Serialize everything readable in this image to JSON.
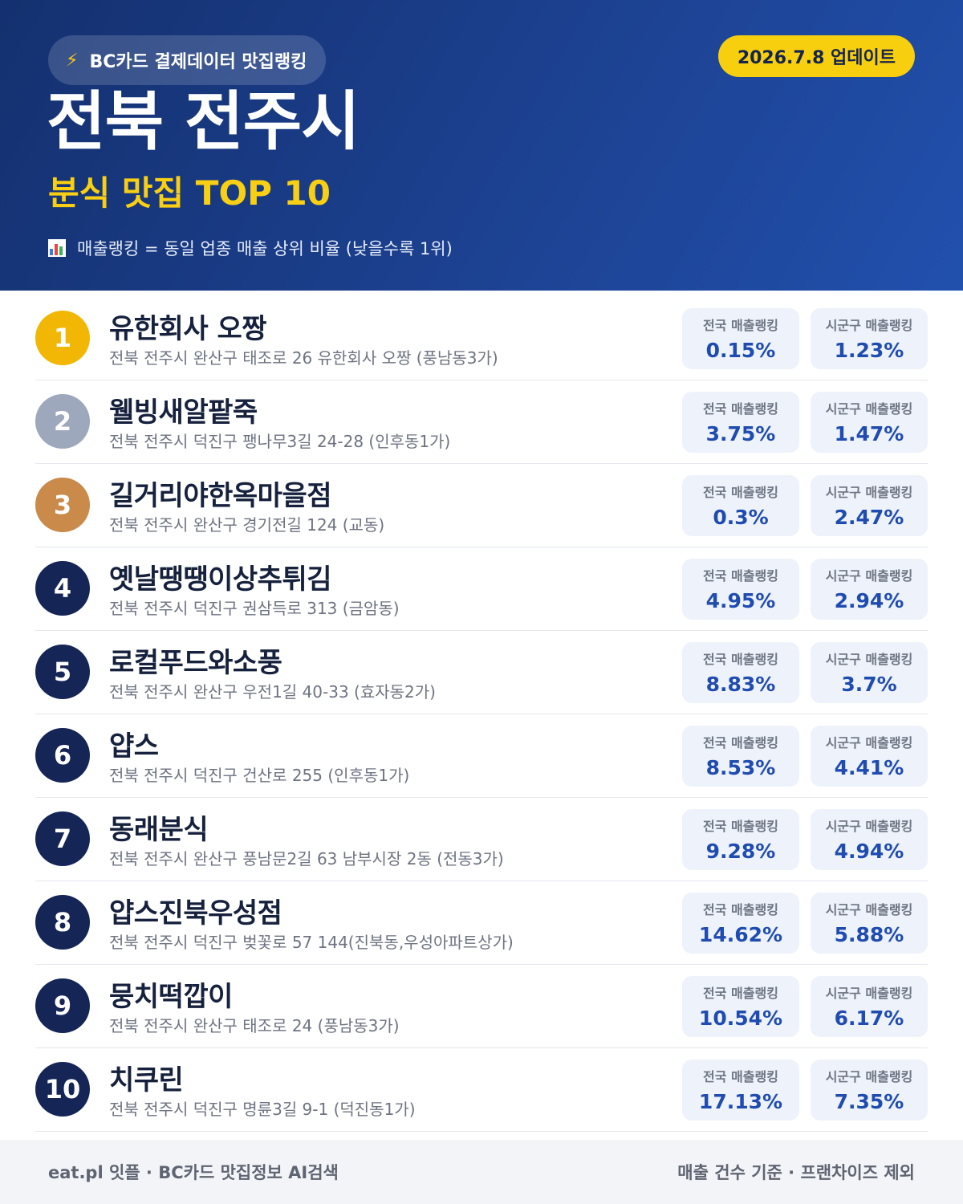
{
  "header": {
    "source_label": "BC카드 결제데이터 맛집랭킹",
    "source_icon": "lightning-bolt-icon",
    "update_label": "2026.7.8 업데이트",
    "region": "전북 전주시",
    "category_title": "분식 맛집 TOP 10",
    "note_icon": "bar-chart-icon",
    "note": "매출랭킹 = 동일 업종 매출 상위 비율 (낮을수록 1위)"
  },
  "stat_labels": {
    "national": "전국 매출랭킹",
    "local": "시군구 매출랭킹"
  },
  "colors": {
    "gold": "#f2b705",
    "silver": "#9ea8bc",
    "bronze": "#c98a4a",
    "navy": "#142556",
    "accent_yellow": "#f8cf12",
    "value_blue": "#1f4cb0"
  },
  "restaurants": [
    {
      "rank": "1",
      "name": "유한회사 오짱",
      "address": "전북 전주시 완산구 태조로 26 유한회사 오짱 (풍남동3가)",
      "national": "0.15%",
      "local": "1.23%"
    },
    {
      "rank": "2",
      "name": "웰빙새알팥죽",
      "address": "전북 전주시 덕진구 팽나무3길 24-28 (인후동1가)",
      "national": "3.75%",
      "local": "1.47%"
    },
    {
      "rank": "3",
      "name": "길거리야한옥마을점",
      "address": "전북 전주시 완산구 경기전길 124 (교동)",
      "national": "0.3%",
      "local": "2.47%"
    },
    {
      "rank": "4",
      "name": "옛날땡땡이상추튀김",
      "address": "전북 전주시 덕진구 권삼득로 313 (금암동)",
      "national": "4.95%",
      "local": "2.94%"
    },
    {
      "rank": "5",
      "name": "로컬푸드와소풍",
      "address": "전북 전주시 완산구 우전1길 40-33 (효자동2가)",
      "national": "8.83%",
      "local": "3.7%"
    },
    {
      "rank": "6",
      "name": "얍스",
      "address": "전북 전주시 덕진구 건산로 255 (인후동1가)",
      "national": "8.53%",
      "local": "4.41%"
    },
    {
      "rank": "7",
      "name": "동래분식",
      "address": "전북 전주시 완산구 풍남문2길 63 남부시장 2동 (전동3가)",
      "national": "9.28%",
      "local": "4.94%"
    },
    {
      "rank": "8",
      "name": "얍스진북우성점",
      "address": "전북 전주시 덕진구 벚꽃로 57 144(진북동,우성아파트상가)",
      "national": "14.62%",
      "local": "5.88%"
    },
    {
      "rank": "9",
      "name": "뭉치떡깝이",
      "address": "전북 전주시 완산구 태조로 24 (풍남동3가)",
      "national": "10.54%",
      "local": "6.17%"
    },
    {
      "rank": "10",
      "name": "치쿠린",
      "address": "전북 전주시 덕진구 명륜3길 9-1 (덕진동1가)",
      "national": "17.13%",
      "local": "7.35%"
    }
  ],
  "footer": {
    "left": "eat.pl 잇플 · BC카드 맛집정보 AI검색",
    "right": "매출 건수 기준 · 프랜차이즈 제외"
  }
}
